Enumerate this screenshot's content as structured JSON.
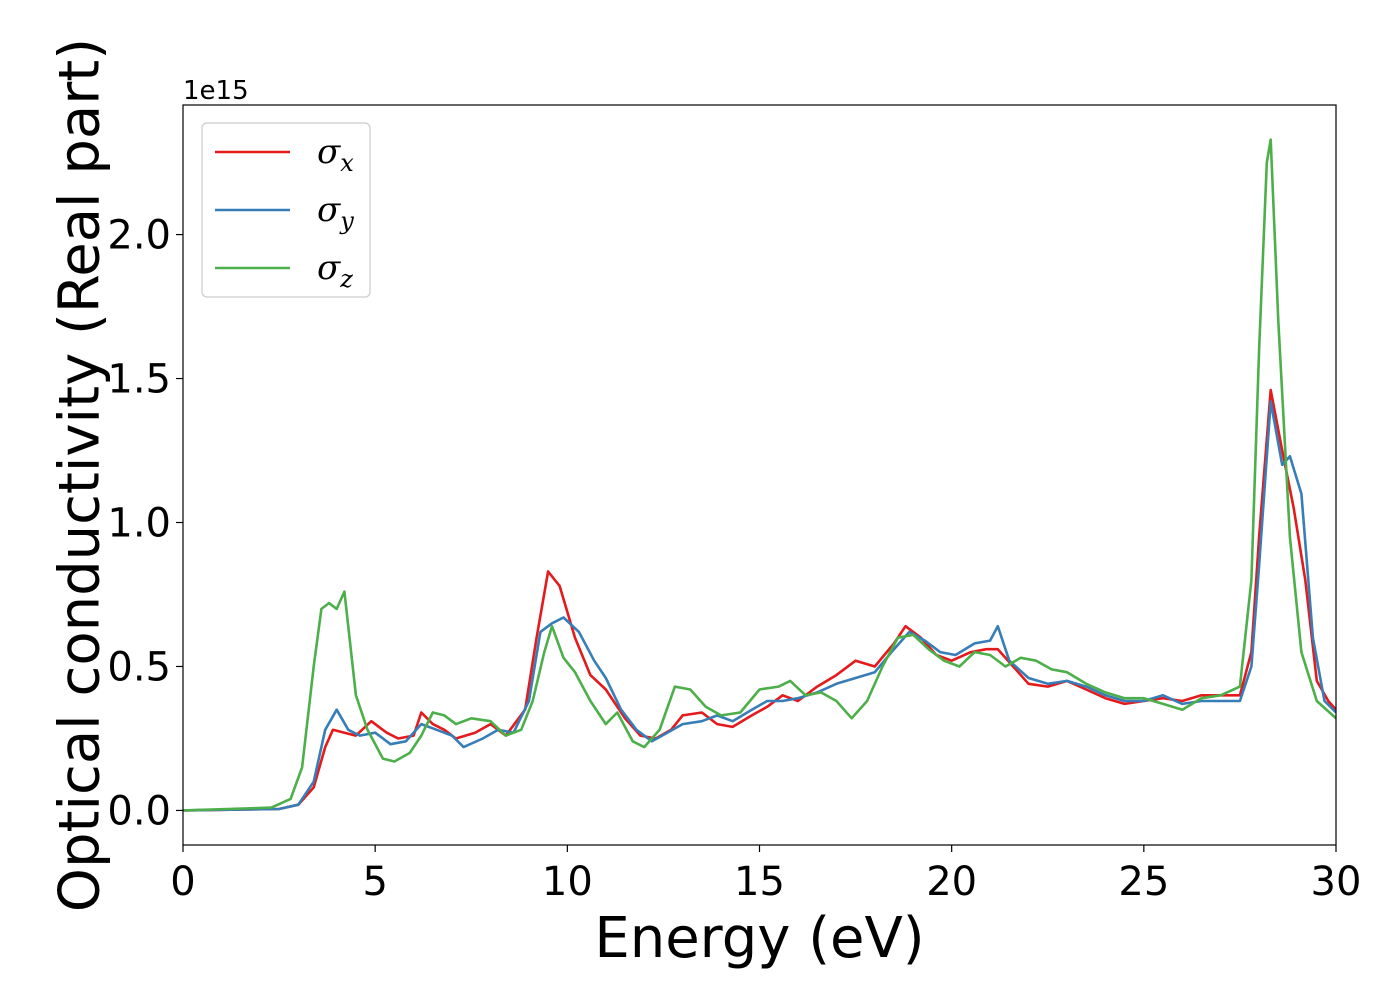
{
  "chart_data": {
    "type": "line",
    "xlabel": "Energy (eV)",
    "ylabel": "Optical conductivity (Real part)",
    "y_offset_label": "1e15",
    "xlim": [
      0,
      30
    ],
    "ylim": [
      -0.12,
      2.45
    ],
    "x_ticks": [
      0,
      5,
      10,
      15,
      20,
      25,
      30
    ],
    "x_tick_labels": [
      "0",
      "5",
      "10",
      "15",
      "20",
      "25",
      "30"
    ],
    "y_ticks": [
      0.0,
      0.5,
      1.0,
      1.5,
      2.0
    ],
    "y_tick_labels": [
      "0.0",
      "0.5",
      "1.0",
      "1.5",
      "2.0"
    ],
    "grid": false,
    "legend_position": "top-left",
    "series": [
      {
        "name": "σ",
        "subscript": "x",
        "color": "#e41a1c",
        "points": [
          [
            0,
            0
          ],
          [
            2.5,
            0.005
          ],
          [
            3.0,
            0.02
          ],
          [
            3.4,
            0.08
          ],
          [
            3.7,
            0.22
          ],
          [
            3.9,
            0.28
          ],
          [
            4.2,
            0.27
          ],
          [
            4.5,
            0.26
          ],
          [
            4.9,
            0.31
          ],
          [
            5.3,
            0.27
          ],
          [
            5.6,
            0.25
          ],
          [
            6.0,
            0.26
          ],
          [
            6.2,
            0.34
          ],
          [
            6.5,
            0.3
          ],
          [
            6.8,
            0.28
          ],
          [
            7.1,
            0.25
          ],
          [
            7.6,
            0.27
          ],
          [
            8.0,
            0.3
          ],
          [
            8.4,
            0.26
          ],
          [
            8.9,
            0.35
          ],
          [
            9.2,
            0.6
          ],
          [
            9.5,
            0.83
          ],
          [
            9.8,
            0.78
          ],
          [
            10.2,
            0.6
          ],
          [
            10.6,
            0.47
          ],
          [
            11.0,
            0.42
          ],
          [
            11.5,
            0.32
          ],
          [
            11.9,
            0.26
          ],
          [
            12.3,
            0.25
          ],
          [
            12.7,
            0.28
          ],
          [
            13.0,
            0.33
          ],
          [
            13.5,
            0.34
          ],
          [
            13.9,
            0.3
          ],
          [
            14.3,
            0.29
          ],
          [
            14.8,
            0.33
          ],
          [
            15.2,
            0.36
          ],
          [
            15.6,
            0.4
          ],
          [
            16.0,
            0.38
          ],
          [
            16.5,
            0.43
          ],
          [
            17.0,
            0.47
          ],
          [
            17.5,
            0.52
          ],
          [
            18.0,
            0.5
          ],
          [
            18.5,
            0.58
          ],
          [
            18.8,
            0.64
          ],
          [
            19.2,
            0.6
          ],
          [
            19.6,
            0.54
          ],
          [
            20.0,
            0.52
          ],
          [
            20.5,
            0.55
          ],
          [
            20.9,
            0.56
          ],
          [
            21.2,
            0.56
          ],
          [
            21.6,
            0.5
          ],
          [
            22.0,
            0.44
          ],
          [
            22.5,
            0.43
          ],
          [
            23.0,
            0.45
          ],
          [
            23.5,
            0.42
          ],
          [
            24.0,
            0.39
          ],
          [
            24.5,
            0.37
          ],
          [
            25.0,
            0.38
          ],
          [
            25.5,
            0.39
          ],
          [
            26.0,
            0.38
          ],
          [
            26.5,
            0.4
          ],
          [
            27.0,
            0.4
          ],
          [
            27.5,
            0.4
          ],
          [
            27.8,
            0.55
          ],
          [
            28.0,
            0.95
          ],
          [
            28.3,
            1.46
          ],
          [
            28.6,
            1.25
          ],
          [
            28.9,
            1.05
          ],
          [
            29.2,
            0.8
          ],
          [
            29.5,
            0.45
          ],
          [
            29.8,
            0.38
          ],
          [
            30.0,
            0.35
          ]
        ]
      },
      {
        "name": "σ",
        "subscript": "y",
        "color": "#377eb8",
        "points": [
          [
            0,
            0
          ],
          [
            2.5,
            0.005
          ],
          [
            3.0,
            0.02
          ],
          [
            3.4,
            0.1
          ],
          [
            3.7,
            0.28
          ],
          [
            4.0,
            0.35
          ],
          [
            4.3,
            0.28
          ],
          [
            4.6,
            0.26
          ],
          [
            5.0,
            0.27
          ],
          [
            5.4,
            0.23
          ],
          [
            5.8,
            0.24
          ],
          [
            6.2,
            0.3
          ],
          [
            6.6,
            0.28
          ],
          [
            7.0,
            0.26
          ],
          [
            7.3,
            0.22
          ],
          [
            7.8,
            0.25
          ],
          [
            8.2,
            0.28
          ],
          [
            8.6,
            0.27
          ],
          [
            9.0,
            0.38
          ],
          [
            9.3,
            0.62
          ],
          [
            9.6,
            0.65
          ],
          [
            9.9,
            0.67
          ],
          [
            10.3,
            0.62
          ],
          [
            10.7,
            0.52
          ],
          [
            11.0,
            0.46
          ],
          [
            11.4,
            0.35
          ],
          [
            11.8,
            0.28
          ],
          [
            12.2,
            0.24
          ],
          [
            12.6,
            0.27
          ],
          [
            13.0,
            0.3
          ],
          [
            13.5,
            0.31
          ],
          [
            13.9,
            0.33
          ],
          [
            14.3,
            0.31
          ],
          [
            14.8,
            0.35
          ],
          [
            15.2,
            0.38
          ],
          [
            15.6,
            0.38
          ],
          [
            16.0,
            0.39
          ],
          [
            16.5,
            0.41
          ],
          [
            17.0,
            0.44
          ],
          [
            17.5,
            0.46
          ],
          [
            18.0,
            0.48
          ],
          [
            18.5,
            0.56
          ],
          [
            18.9,
            0.62
          ],
          [
            19.3,
            0.59
          ],
          [
            19.7,
            0.55
          ],
          [
            20.1,
            0.54
          ],
          [
            20.6,
            0.58
          ],
          [
            21.0,
            0.59
          ],
          [
            21.2,
            0.64
          ],
          [
            21.5,
            0.52
          ],
          [
            22.0,
            0.46
          ],
          [
            22.5,
            0.44
          ],
          [
            23.0,
            0.45
          ],
          [
            23.5,
            0.43
          ],
          [
            24.0,
            0.4
          ],
          [
            24.5,
            0.38
          ],
          [
            25.0,
            0.38
          ],
          [
            25.5,
            0.4
          ],
          [
            26.0,
            0.37
          ],
          [
            26.5,
            0.38
          ],
          [
            27.0,
            0.38
          ],
          [
            27.5,
            0.38
          ],
          [
            27.8,
            0.5
          ],
          [
            28.0,
            0.85
          ],
          [
            28.3,
            1.42
          ],
          [
            28.6,
            1.2
          ],
          [
            28.8,
            1.23
          ],
          [
            29.1,
            1.1
          ],
          [
            29.4,
            0.6
          ],
          [
            29.7,
            0.38
          ],
          [
            30.0,
            0.34
          ]
        ]
      },
      {
        "name": "σ",
        "subscript": "z",
        "color": "#4daf4a",
        "points": [
          [
            0,
            0
          ],
          [
            2.3,
            0.01
          ],
          [
            2.8,
            0.04
          ],
          [
            3.1,
            0.15
          ],
          [
            3.4,
            0.5
          ],
          [
            3.6,
            0.7
          ],
          [
            3.8,
            0.72
          ],
          [
            4.0,
            0.7
          ],
          [
            4.2,
            0.76
          ],
          [
            4.5,
            0.4
          ],
          [
            4.8,
            0.28
          ],
          [
            5.2,
            0.18
          ],
          [
            5.5,
            0.17
          ],
          [
            5.9,
            0.2
          ],
          [
            6.2,
            0.26
          ],
          [
            6.5,
            0.34
          ],
          [
            6.8,
            0.33
          ],
          [
            7.1,
            0.3
          ],
          [
            7.5,
            0.32
          ],
          [
            8.0,
            0.31
          ],
          [
            8.4,
            0.26
          ],
          [
            8.8,
            0.28
          ],
          [
            9.1,
            0.38
          ],
          [
            9.4,
            0.55
          ],
          [
            9.6,
            0.64
          ],
          [
            9.9,
            0.53
          ],
          [
            10.2,
            0.48
          ],
          [
            10.6,
            0.38
          ],
          [
            11.0,
            0.3
          ],
          [
            11.3,
            0.34
          ],
          [
            11.7,
            0.24
          ],
          [
            12.0,
            0.22
          ],
          [
            12.4,
            0.28
          ],
          [
            12.8,
            0.43
          ],
          [
            13.2,
            0.42
          ],
          [
            13.6,
            0.36
          ],
          [
            14.0,
            0.33
          ],
          [
            14.5,
            0.34
          ],
          [
            15.0,
            0.42
          ],
          [
            15.5,
            0.43
          ],
          [
            15.8,
            0.45
          ],
          [
            16.2,
            0.4
          ],
          [
            16.6,
            0.41
          ],
          [
            17.0,
            0.38
          ],
          [
            17.4,
            0.32
          ],
          [
            17.8,
            0.38
          ],
          [
            18.2,
            0.5
          ],
          [
            18.6,
            0.6
          ],
          [
            19.0,
            0.61
          ],
          [
            19.4,
            0.56
          ],
          [
            19.8,
            0.52
          ],
          [
            20.2,
            0.5
          ],
          [
            20.6,
            0.55
          ],
          [
            21.0,
            0.54
          ],
          [
            21.4,
            0.5
          ],
          [
            21.8,
            0.53
          ],
          [
            22.2,
            0.52
          ],
          [
            22.6,
            0.49
          ],
          [
            23.0,
            0.48
          ],
          [
            23.5,
            0.44
          ],
          [
            24.0,
            0.41
          ],
          [
            24.5,
            0.39
          ],
          [
            25.0,
            0.39
          ],
          [
            25.5,
            0.37
          ],
          [
            26.0,
            0.35
          ],
          [
            26.5,
            0.39
          ],
          [
            27.0,
            0.4
          ],
          [
            27.5,
            0.43
          ],
          [
            27.8,
            0.8
          ],
          [
            28.0,
            1.6
          ],
          [
            28.2,
            2.25
          ],
          [
            28.3,
            2.33
          ],
          [
            28.5,
            1.7
          ],
          [
            28.8,
            0.95
          ],
          [
            29.1,
            0.55
          ],
          [
            29.5,
            0.38
          ],
          [
            30.0,
            0.32
          ]
        ]
      }
    ]
  }
}
